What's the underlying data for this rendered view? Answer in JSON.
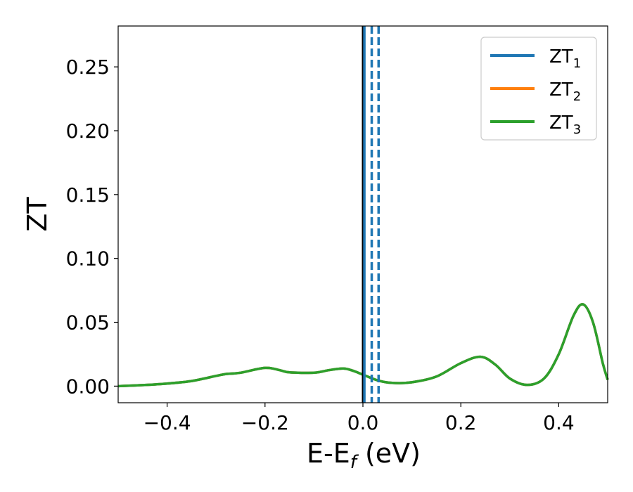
{
  "chart_data": {
    "type": "line",
    "xlabel": "E-E",
    "xlabel_sub": "f",
    "xlabel_unit": " (eV)",
    "ylabel": "ZT",
    "xlim": [
      -0.5,
      0.5
    ],
    "ylim": [
      -0.013,
      0.282
    ],
    "xticks": [
      -0.4,
      -0.2,
      0.0,
      0.2,
      0.4
    ],
    "xtick_labels": [
      "−0.4",
      "−0.2",
      "0.0",
      "0.2",
      "0.4"
    ],
    "yticks": [
      0.0,
      0.05,
      0.1,
      0.15,
      0.2,
      0.25
    ],
    "ytick_labels": [
      "0.00",
      "0.05",
      "0.10",
      "0.15",
      "0.20",
      "0.25"
    ],
    "grid": false,
    "legend_placement": "top-right",
    "series": [
      {
        "name": "ZT",
        "subscript": "1",
        "color": "#1f77b4"
      },
      {
        "name": "ZT",
        "subscript": "2",
        "color": "#ff7f0e"
      },
      {
        "name": "ZT",
        "subscript": "3",
        "color": "#2ca02c"
      }
    ],
    "curve": {
      "x": [
        -0.5,
        -0.45,
        -0.4,
        -0.35,
        -0.3,
        -0.28,
        -0.25,
        -0.2,
        -0.17,
        -0.15,
        -0.1,
        -0.07,
        -0.04,
        -0.02,
        0.0,
        0.03,
        0.06,
        0.1,
        0.15,
        0.2,
        0.24,
        0.27,
        0.3,
        0.335,
        0.37,
        0.4,
        0.43,
        0.45,
        0.47,
        0.49,
        0.5
      ],
      "y": [
        0.0,
        0.0008,
        0.002,
        0.004,
        0.008,
        0.0095,
        0.0105,
        0.0143,
        0.0125,
        0.0108,
        0.0105,
        0.0125,
        0.0138,
        0.012,
        0.009,
        0.0045,
        0.0025,
        0.003,
        0.0075,
        0.018,
        0.023,
        0.017,
        0.006,
        0.001,
        0.006,
        0.025,
        0.055,
        0.064,
        0.05,
        0.018,
        0.005
      ]
    },
    "vlines": [
      {
        "x": 0.0,
        "color": "#000000",
        "style": "solid"
      },
      {
        "x": 0.0,
        "color": "#000000",
        "style": "dashed"
      },
      {
        "x": 0.003,
        "color": "#1f77b4",
        "style": "solid"
      },
      {
        "x": 0.018,
        "color": "#1f77b4",
        "style": "dashed"
      },
      {
        "x": 0.032,
        "color": "#1f77b4",
        "style": "dashed"
      }
    ]
  }
}
